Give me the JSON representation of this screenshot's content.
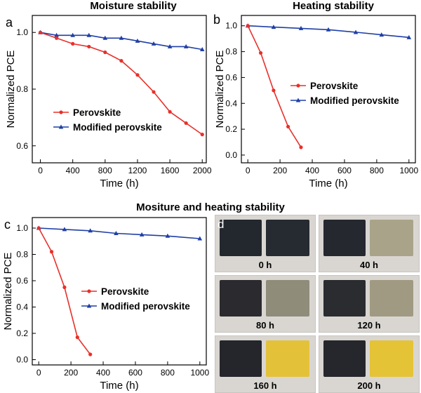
{
  "titles": {
    "a": "Moisture stability",
    "b": "Heating stability",
    "c": "Mositure and heating stability"
  },
  "chart_data": [
    {
      "panel": "a",
      "type": "line",
      "xlabel": "Time (h)",
      "ylabel": "Normalized PCE",
      "xlim": [
        -100,
        2050
      ],
      "ylim": [
        0.54,
        1.06
      ],
      "xticks": [
        0,
        400,
        800,
        1200,
        1600,
        2000
      ],
      "yticks": [
        0.6,
        0.8,
        1.0
      ],
      "ytick_labels": [
        "0.6",
        "0.8",
        "1.0"
      ],
      "legend_position": "center-left",
      "series": [
        {
          "name": "Perovskite",
          "color": "#e8302a",
          "marker": "circle",
          "x": [
            0,
            200,
            400,
            600,
            800,
            1000,
            1200,
            1400,
            1600,
            1800,
            2000
          ],
          "y": [
            1.0,
            0.98,
            0.96,
            0.95,
            0.93,
            0.9,
            0.85,
            0.79,
            0.72,
            0.68,
            0.64
          ]
        },
        {
          "name": "Modified perovskite",
          "color": "#1f3fa6",
          "marker": "triangle",
          "x": [
            0,
            200,
            400,
            600,
            800,
            1000,
            1200,
            1400,
            1600,
            1800,
            2000
          ],
          "y": [
            1.0,
            0.99,
            0.99,
            0.99,
            0.98,
            0.98,
            0.97,
            0.96,
            0.95,
            0.95,
            0.94
          ]
        }
      ]
    },
    {
      "panel": "b",
      "type": "line",
      "xlabel": "Time (h)",
      "ylabel": "Normalized PCE",
      "xlim": [
        -40,
        1040
      ],
      "ylim": [
        -0.06,
        1.08
      ],
      "xticks": [
        0,
        200,
        400,
        600,
        800,
        1000
      ],
      "yticks": [
        0.0,
        0.2,
        0.4,
        0.6,
        0.8,
        1.0
      ],
      "ytick_labels": [
        "0.0",
        "0.2",
        "0.4",
        "0.6",
        "0.8",
        "1.0"
      ],
      "legend_position": "center",
      "series": [
        {
          "name": "Perovskite",
          "color": "#e8302a",
          "marker": "circle",
          "x": [
            0,
            80,
            160,
            250,
            330
          ],
          "y": [
            1.0,
            0.79,
            0.5,
            0.22,
            0.06
          ]
        },
        {
          "name": "Modified perovskite",
          "color": "#1f3fa6",
          "marker": "triangle",
          "x": [
            0,
            160,
            330,
            500,
            670,
            830,
            1000
          ],
          "y": [
            1.0,
            0.99,
            0.98,
            0.97,
            0.95,
            0.93,
            0.91
          ]
        }
      ]
    },
    {
      "panel": "c",
      "type": "line",
      "xlabel": "Time (h)",
      "ylabel": "Normalized PCE",
      "xlim": [
        -40,
        1040
      ],
      "ylim": [
        -0.04,
        1.08
      ],
      "xticks": [
        0,
        200,
        400,
        600,
        800,
        1000
      ],
      "yticks": [
        0.0,
        0.2,
        0.4,
        0.6,
        0.8,
        1.0
      ],
      "ytick_labels": [
        "0.0",
        "0.2",
        "0.4",
        "0.6",
        "0.8",
        "1.0"
      ],
      "legend_position": "center",
      "series": [
        {
          "name": "Perovskite",
          "color": "#e8302a",
          "marker": "circle",
          "x": [
            0,
            80,
            160,
            240,
            320
          ],
          "y": [
            1.0,
            0.82,
            0.55,
            0.17,
            0.04
          ]
        },
        {
          "name": "Modified perovskite",
          "color": "#1f3fa6",
          "marker": "triangle",
          "x": [
            0,
            160,
            320,
            480,
            640,
            800,
            1000
          ],
          "y": [
            1.0,
            0.99,
            0.98,
            0.96,
            0.95,
            0.94,
            0.92
          ]
        }
      ]
    }
  ],
  "photo_panel": {
    "letter": "d",
    "items": [
      {
        "label": "0 h",
        "left_color": "#23272e",
        "right_color": "#262a31"
      },
      {
        "label": "40 h",
        "left_color": "#25282f",
        "right_color": "#a9a389"
      },
      {
        "label": "80 h",
        "left_color": "#2b2a2e",
        "right_color": "#8f8c7a"
      },
      {
        "label": "120 h",
        "left_color": "#2a2c30",
        "right_color": "#a09a82"
      },
      {
        "label": "160 h",
        "left_color": "#25262b",
        "right_color": "#e3c23a"
      },
      {
        "label": "200 h",
        "left_color": "#26272c",
        "right_color": "#e4c337"
      }
    ]
  }
}
